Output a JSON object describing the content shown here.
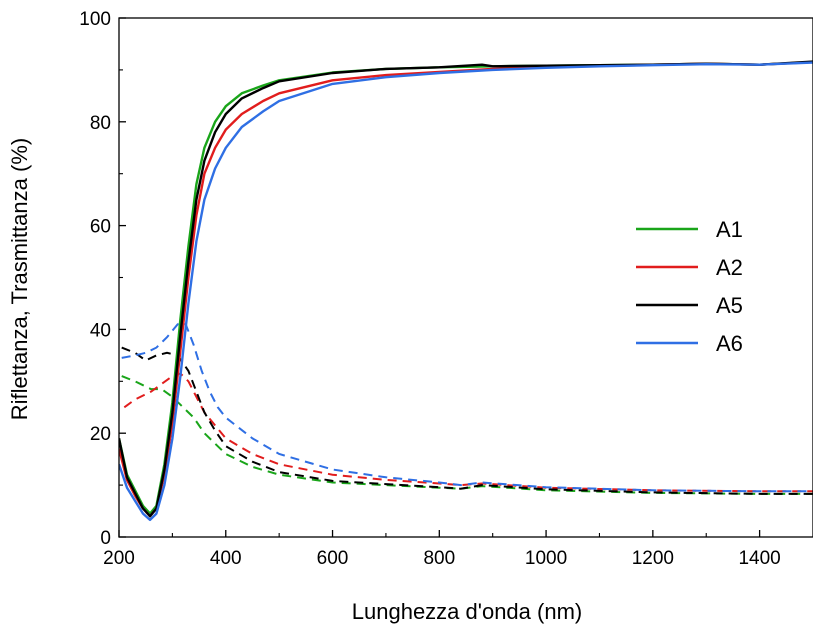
{
  "chart_data": {
    "type": "line",
    "xlabel": "Lunghezza d'onda (nm)",
    "ylabel": "Riflettanza, Trasmittanza (%)",
    "xlim": [
      200,
      1500
    ],
    "ylim": [
      0,
      100
    ],
    "x_ticks": [
      "200",
      "400",
      "600",
      "800",
      "1000",
      "1200",
      "1400"
    ],
    "y_ticks": [
      "0",
      "20",
      "40",
      "60",
      "80",
      "100"
    ],
    "grid": false,
    "legend_position": "right-center",
    "series": [
      {
        "name": "A1",
        "color": "#1aa51a",
        "transmittance": [
          [
            200,
            19
          ],
          [
            215,
            12
          ],
          [
            230,
            9
          ],
          [
            245,
            6
          ],
          [
            258,
            4.5
          ],
          [
            270,
            6
          ],
          [
            285,
            14
          ],
          [
            300,
            26
          ],
          [
            315,
            42
          ],
          [
            330,
            56
          ],
          [
            345,
            68
          ],
          [
            360,
            75
          ],
          [
            380,
            80
          ],
          [
            400,
            83
          ],
          [
            430,
            85.5
          ],
          [
            470,
            87
          ],
          [
            500,
            88
          ],
          [
            600,
            89.5
          ],
          [
            700,
            90.2
          ],
          [
            800,
            90.5
          ],
          [
            900,
            90.7
          ],
          [
            1000,
            90.8
          ],
          [
            1100,
            90.9
          ],
          [
            1200,
            91
          ],
          [
            1300,
            91.2
          ],
          [
            1400,
            91
          ],
          [
            1500,
            91.5
          ]
        ],
        "reflectance": [
          [
            205,
            31
          ],
          [
            230,
            30
          ],
          [
            260,
            28.5
          ],
          [
            280,
            28.5
          ],
          [
            300,
            27
          ],
          [
            320,
            25
          ],
          [
            340,
            23
          ],
          [
            360,
            20
          ],
          [
            380,
            18
          ],
          [
            400,
            16
          ],
          [
            450,
            13.5
          ],
          [
            500,
            12
          ],
          [
            600,
            10.5
          ],
          [
            700,
            10
          ],
          [
            800,
            9.5
          ],
          [
            840,
            9.3
          ],
          [
            880,
            9.8
          ],
          [
            1000,
            9
          ],
          [
            1200,
            8.5
          ],
          [
            1400,
            8.3
          ],
          [
            1500,
            8.3
          ]
        ]
      },
      {
        "name": "A2",
        "color": "#e11d1d",
        "transmittance": [
          [
            200,
            17
          ],
          [
            215,
            11
          ],
          [
            230,
            8
          ],
          [
            245,
            5.5
          ],
          [
            258,
            4
          ],
          [
            270,
            5.5
          ],
          [
            285,
            12
          ],
          [
            300,
            22
          ],
          [
            315,
            36
          ],
          [
            330,
            50
          ],
          [
            345,
            62
          ],
          [
            360,
            70
          ],
          [
            380,
            75
          ],
          [
            400,
            78.5
          ],
          [
            430,
            81.5
          ],
          [
            470,
            84
          ],
          [
            500,
            85.5
          ],
          [
            600,
            88
          ],
          [
            700,
            89
          ],
          [
            800,
            89.6
          ],
          [
            900,
            90.2
          ],
          [
            1000,
            90.5
          ],
          [
            1100,
            90.8
          ],
          [
            1200,
            91
          ],
          [
            1300,
            91.2
          ],
          [
            1400,
            91
          ],
          [
            1500,
            91.5
          ]
        ],
        "reflectance": [
          [
            210,
            25
          ],
          [
            230,
            26.5
          ],
          [
            260,
            28
          ],
          [
            280,
            29.5
          ],
          [
            300,
            31
          ],
          [
            315,
            31.5
          ],
          [
            330,
            30
          ],
          [
            345,
            27
          ],
          [
            360,
            24
          ],
          [
            380,
            21.5
          ],
          [
            400,
            19
          ],
          [
            450,
            16
          ],
          [
            500,
            14
          ],
          [
            600,
            12
          ],
          [
            700,
            11
          ],
          [
            800,
            10.3
          ],
          [
            840,
            10
          ],
          [
            880,
            10.3
          ],
          [
            1000,
            9.5
          ],
          [
            1200,
            9
          ],
          [
            1400,
            8.8
          ],
          [
            1500,
            8.8
          ]
        ]
      },
      {
        "name": "A5",
        "color": "#000000",
        "transmittance": [
          [
            200,
            19
          ],
          [
            215,
            11.5
          ],
          [
            230,
            8.5
          ],
          [
            245,
            5.5
          ],
          [
            258,
            4
          ],
          [
            270,
            5.5
          ],
          [
            285,
            13
          ],
          [
            300,
            24
          ],
          [
            315,
            39
          ],
          [
            330,
            53
          ],
          [
            345,
            65
          ],
          [
            360,
            72.5
          ],
          [
            380,
            78
          ],
          [
            400,
            81.5
          ],
          [
            430,
            84.5
          ],
          [
            470,
            86.5
          ],
          [
            500,
            87.8
          ],
          [
            600,
            89.4
          ],
          [
            700,
            90.2
          ],
          [
            800,
            90.5
          ],
          [
            880,
            91
          ],
          [
            900,
            90.7
          ],
          [
            1000,
            90.8
          ],
          [
            1100,
            90.9
          ],
          [
            1200,
            91
          ],
          [
            1300,
            91.2
          ],
          [
            1400,
            91
          ],
          [
            1500,
            91.6
          ]
        ],
        "reflectance": [
          [
            205,
            36.5
          ],
          [
            230,
            35.5
          ],
          [
            250,
            34
          ],
          [
            270,
            35
          ],
          [
            290,
            35.5
          ],
          [
            310,
            35
          ],
          [
            330,
            32
          ],
          [
            345,
            28
          ],
          [
            360,
            24
          ],
          [
            380,
            20.5
          ],
          [
            400,
            17.5
          ],
          [
            450,
            14.5
          ],
          [
            500,
            12.5
          ],
          [
            600,
            10.8
          ],
          [
            700,
            10.2
          ],
          [
            800,
            9.6
          ],
          [
            840,
            9.3
          ],
          [
            880,
            10
          ],
          [
            1000,
            9.2
          ],
          [
            1200,
            8.6
          ],
          [
            1400,
            8.3
          ],
          [
            1500,
            8.3
          ]
        ]
      },
      {
        "name": "A6",
        "color": "#2f6fe4",
        "transmittance": [
          [
            200,
            14
          ],
          [
            215,
            9.5
          ],
          [
            230,
            7
          ],
          [
            245,
            4.5
          ],
          [
            258,
            3.3
          ],
          [
            270,
            4.5
          ],
          [
            285,
            10
          ],
          [
            300,
            19
          ],
          [
            315,
            31
          ],
          [
            330,
            45
          ],
          [
            345,
            57
          ],
          [
            360,
            65
          ],
          [
            380,
            71
          ],
          [
            400,
            75
          ],
          [
            430,
            79
          ],
          [
            470,
            82
          ],
          [
            500,
            84
          ],
          [
            600,
            87.3
          ],
          [
            700,
            88.6
          ],
          [
            800,
            89.4
          ],
          [
            900,
            90
          ],
          [
            1000,
            90.4
          ],
          [
            1100,
            90.7
          ],
          [
            1200,
            90.9
          ],
          [
            1300,
            91.1
          ],
          [
            1400,
            91
          ],
          [
            1500,
            91.4
          ]
        ],
        "reflectance": [
          [
            205,
            34.5
          ],
          [
            230,
            35
          ],
          [
            250,
            35.5
          ],
          [
            270,
            36.5
          ],
          [
            290,
            38.5
          ],
          [
            310,
            41
          ],
          [
            325,
            41
          ],
          [
            340,
            37
          ],
          [
            355,
            32
          ],
          [
            370,
            28
          ],
          [
            385,
            25
          ],
          [
            400,
            23
          ],
          [
            450,
            19
          ],
          [
            500,
            16
          ],
          [
            600,
            13
          ],
          [
            700,
            11.5
          ],
          [
            800,
            10.5
          ],
          [
            840,
            10
          ],
          [
            880,
            10.5
          ],
          [
            1000,
            9.6
          ],
          [
            1200,
            9
          ],
          [
            1400,
            8.8
          ],
          [
            1500,
            8.8
          ]
        ]
      }
    ]
  }
}
